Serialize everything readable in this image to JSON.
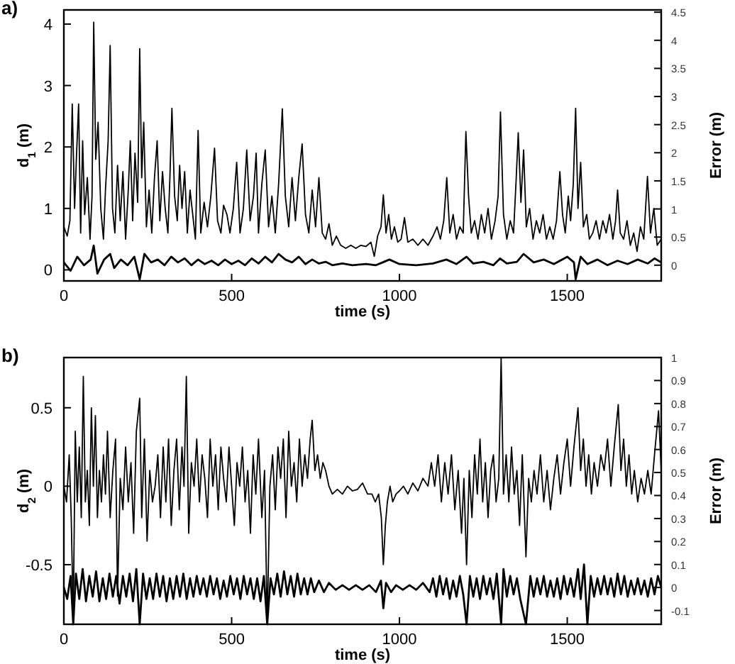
{
  "chart_data": [
    {
      "type": "line",
      "title": "a)",
      "xlabel": "time (s)",
      "ylabel": "d$_{1}$ (m)",
      "y2label": "Error (m)",
      "xlim": [
        0,
        1780
      ],
      "xticks": [
        0,
        500,
        1000,
        1500
      ],
      "ylim": [
        -0.18,
        4.23
      ],
      "yticks": [
        0,
        1,
        2,
        3,
        4
      ],
      "y2lim": [
        -0.28,
        4.54
      ],
      "y2ticks": [
        0,
        0.5,
        1,
        1.5,
        2,
        2.5,
        3,
        3.5,
        4,
        4.5
      ],
      "series": [
        {
          "color": "#000000",
          "x": [
            0,
            10,
            18,
            25,
            32,
            38,
            44,
            50,
            56,
            62,
            70,
            78,
            84,
            89,
            95,
            102,
            110,
            118,
            124,
            132,
            138,
            145,
            152,
            160,
            168,
            176,
            184,
            192,
            198,
            205,
            212,
            220,
            226,
            232,
            238,
            246,
            254,
            262,
            270,
            278,
            286,
            294,
            302,
            310,
            316,
            322,
            330,
            338,
            345,
            352,
            360,
            368,
            376,
            384,
            392,
            400,
            408,
            418,
            428,
            438,
            449,
            458,
            468,
            476,
            486,
            495,
            505,
            515,
            525,
            535,
            545,
            555,
            565,
            573,
            580,
            590,
            600,
            610,
            620,
            630,
            640,
            651,
            660,
            670,
            680,
            690,
            700,
            710,
            720,
            730,
            740,
            750,
            760,
            770,
            780,
            790,
            800,
            812,
            825,
            840,
            855,
            870,
            885,
            900,
            915,
            925,
            935,
            945,
            952,
            960,
            968,
            976,
            985,
            995,
            1005,
            1015,
            1025,
            1040,
            1055,
            1070,
            1085,
            1100,
            1112,
            1122,
            1132,
            1141,
            1150,
            1160,
            1170,
            1180,
            1190,
            1198,
            1206,
            1214,
            1224,
            1234,
            1244,
            1254,
            1264,
            1274,
            1285,
            1294,
            1301,
            1310,
            1320,
            1330,
            1340,
            1348,
            1354,
            1362,
            1370,
            1378,
            1388,
            1398,
            1408,
            1418,
            1428,
            1438,
            1448,
            1458,
            1468,
            1478,
            1486,
            1494,
            1503,
            1510,
            1518,
            1525,
            1532,
            1540,
            1548,
            1558,
            1566,
            1576,
            1586,
            1596,
            1606,
            1616,
            1626,
            1636,
            1644,
            1650,
            1658,
            1668,
            1678,
            1688,
            1698,
            1708,
            1718,
            1728,
            1739,
            1748,
            1758,
            1768,
            1780
          ],
          "values": [
            0.7,
            0.55,
            0.8,
            2.7,
            1.0,
            1.9,
            2.7,
            0.6,
            2.1,
            0.9,
            1.5,
            0.5,
            1.2,
            4.03,
            1.8,
            2.4,
            1.0,
            0.5,
            1.3,
            2.1,
            3.65,
            1.0,
            0.6,
            1.7,
            0.8,
            1.6,
            0.5,
            1.3,
            2.1,
            0.8,
            1.9,
            1.1,
            3.6,
            1.5,
            2.4,
            0.7,
            1.3,
            0.6,
            1.5,
            2.1,
            0.8,
            1.6,
            1.0,
            0.6,
            1.5,
            2.63,
            1.2,
            0.8,
            1.7,
            1.0,
            1.6,
            0.6,
            1.3,
            0.9,
            0.5,
            2.27,
            0.6,
            1.1,
            0.7,
            1.2,
            1.98,
            0.8,
            0.6,
            1.05,
            0.9,
            0.6,
            1.0,
            1.75,
            0.6,
            1.0,
            1.95,
            0.8,
            1.2,
            1.9,
            0.6,
            1.4,
            1.95,
            0.7,
            1.2,
            0.6,
            1.4,
            2.62,
            1.2,
            0.7,
            1.5,
            0.8,
            1.5,
            2.05,
            0.9,
            0.6,
            1.3,
            0.7,
            1.5,
            0.6,
            0.5,
            0.75,
            0.4,
            0.55,
            0.4,
            0.35,
            0.4,
            0.35,
            0.4,
            0.38,
            0.45,
            0.22,
            0.55,
            0.7,
            1.22,
            0.6,
            0.9,
            0.5,
            0.7,
            0.45,
            0.5,
            0.85,
            0.45,
            0.5,
            0.4,
            0.5,
            0.4,
            0.55,
            0.7,
            0.5,
            0.8,
            1.5,
            0.6,
            0.9,
            0.5,
            0.7,
            0.6,
            2.25,
            1.2,
            0.6,
            0.8,
            0.5,
            0.9,
            0.6,
            1.0,
            0.5,
            0.8,
            1.2,
            2.57,
            0.9,
            0.5,
            0.8,
            0.6,
            1.5,
            2.23,
            1.1,
            1.95,
            0.7,
            1.0,
            0.5,
            0.8,
            0.6,
            0.9,
            0.5,
            0.7,
            0.5,
            0.8,
            1.6,
            0.9,
            0.6,
            1.2,
            0.8,
            1.4,
            2.63,
            1.0,
            1.75,
            0.7,
            0.9,
            0.5,
            0.6,
            0.8,
            0.5,
            0.8,
            0.6,
            0.9,
            0.5,
            0.8,
            1.3,
            0.6,
            0.5,
            0.8,
            0.4,
            0.6,
            0.3,
            0.7,
            0.5,
            1.52,
            0.6,
            1.0,
            0.4,
            0.5
          ]
        },
        {
          "color": "#000000",
          "axis": "y2",
          "x": [
            0,
            20,
            40,
            60,
            80,
            89,
            100,
            120,
            138,
            150,
            170,
            190,
            210,
            226,
            240,
            260,
            280,
            300,
            320,
            340,
            360,
            380,
            400,
            420,
            440,
            460,
            480,
            500,
            520,
            540,
            560,
            580,
            600,
            620,
            640,
            660,
            680,
            700,
            720,
            740,
            760,
            780,
            800,
            830,
            860,
            900,
            930,
            950,
            970,
            1000,
            1050,
            1100,
            1140,
            1170,
            1200,
            1220,
            1250,
            1280,
            1300,
            1320,
            1350,
            1370,
            1400,
            1430,
            1460,
            1500,
            1520,
            1525,
            1540,
            1560,
            1590,
            1620,
            1650,
            1680,
            1710,
            1740,
            1760,
            1780
          ],
          "values": [
            0.05,
            -0.1,
            0.15,
            0.0,
            0.1,
            0.35,
            -0.15,
            0.1,
            0.2,
            -0.05,
            0.1,
            0.0,
            0.15,
            -0.25,
            0.2,
            0.05,
            0.1,
            0.0,
            0.15,
            0.05,
            0.12,
            0.0,
            0.1,
            0.02,
            0.08,
            0.0,
            0.1,
            0.02,
            0.08,
            0.0,
            0.12,
            0.03,
            0.15,
            0.05,
            0.2,
            0.1,
            0.05,
            0.15,
            0.02,
            0.1,
            0.03,
            0.06,
            0.0,
            0.03,
            0.0,
            0.02,
            0.0,
            0.05,
            0.1,
            0.02,
            0.0,
            0.03,
            0.1,
            0.02,
            0.15,
            0.03,
            0.06,
            0.0,
            0.12,
            0.03,
            0.06,
            0.2,
            0.05,
            0.1,
            0.02,
            0.15,
            0.05,
            -0.25,
            0.15,
            0.02,
            0.1,
            0.0,
            0.08,
            0.02,
            0.1,
            0.03,
            0.12,
            0.05
          ]
        }
      ]
    },
    {
      "type": "line",
      "title": "b)",
      "xlabel": "time (s)",
      "ylabel": "d$_{2}$ (m)",
      "y2label": "Error (m)",
      "xlim": [
        0,
        1780
      ],
      "xticks": [
        0,
        500,
        1000,
        1500
      ],
      "ylim": [
        -0.88,
        0.82
      ],
      "yticks": [
        -0.5,
        0,
        0.5
      ],
      "y2lim": [
        -0.16,
        1
      ],
      "y2ticks": [
        -0.1,
        0,
        0.1,
        0.2,
        0.3,
        0.4,
        0.5,
        0.6,
        0.7,
        0.8,
        0.9,
        1
      ],
      "series": [
        {
          "color": "#000000",
          "x": [
            0,
            8,
            16,
            22,
            28,
            34,
            40,
            46,
            52,
            58,
            64,
            70,
            76,
            82,
            88,
            94,
            100,
            106,
            112,
            118,
            124,
            130,
            138,
            146,
            154,
            160,
            168,
            176,
            184,
            192,
            200,
            208,
            216,
            226,
            232,
            240,
            248,
            256,
            264,
            272,
            280,
            288,
            296,
            304,
            312,
            320,
            328,
            336,
            344,
            352,
            358,
            365,
            372,
            380,
            388,
            396,
            404,
            412,
            420,
            428,
            436,
            444,
            452,
            460,
            468,
            476,
            484,
            492,
            500,
            508,
            516,
            524,
            532,
            540,
            548,
            556,
            564,
            572,
            580,
            590,
            598,
            606,
            614,
            622,
            630,
            638,
            646,
            654,
            662,
            670,
            678,
            686,
            694,
            702,
            710,
            718,
            726,
            734,
            740,
            748,
            756,
            764,
            772,
            780,
            790,
            800,
            815,
            830,
            845,
            860,
            875,
            890,
            905,
            918,
            928,
            938,
            946,
            952,
            958,
            964,
            972,
            980,
            990,
            1000,
            1012,
            1025,
            1040,
            1055,
            1070,
            1085,
            1095,
            1105,
            1115,
            1125,
            1135,
            1145,
            1155,
            1165,
            1175,
            1185,
            1192,
            1200,
            1208,
            1216,
            1224,
            1232,
            1240,
            1248,
            1256,
            1264,
            1272,
            1280,
            1288,
            1296,
            1303,
            1310,
            1318,
            1326,
            1334,
            1342,
            1350,
            1358,
            1366,
            1377,
            1385,
            1393,
            1401,
            1410,
            1420,
            1430,
            1440,
            1450,
            1460,
            1470,
            1480,
            1490,
            1500,
            1510,
            1520,
            1532,
            1540,
            1548,
            1556,
            1564,
            1572,
            1580,
            1590,
            1600,
            1610,
            1620,
            1630,
            1640,
            1652,
            1660,
            1668,
            1676,
            1684,
            1692,
            1700,
            1710,
            1720,
            1730,
            1740,
            1750,
            1760,
            1772,
            1780
          ],
          "values": [
            0.0,
            -0.1,
            0.2,
            -0.2,
            -0.85,
            0.35,
            -0.1,
            0.25,
            -0.2,
            0.7,
            -0.1,
            0.1,
            -0.25,
            0.5,
            0.0,
            0.45,
            -0.2,
            0.1,
            -0.1,
            0.2,
            -0.05,
            0.35,
            -0.2,
            0.1,
            0.3,
            -0.7,
            0.05,
            -0.15,
            0.25,
            -0.1,
            0.15,
            -0.3,
            0.35,
            0.56,
            -0.2,
            0.3,
            -0.35,
            0.1,
            -0.1,
            0.0,
            0.2,
            -0.2,
            0.25,
            -0.1,
            0.3,
            -0.25,
            0.1,
            0.3,
            -0.15,
            0.25,
            0.0,
            0.7,
            -0.3,
            0.15,
            0.0,
            0.3,
            -0.1,
            0.2,
            0.05,
            -0.2,
            0.3,
            0.0,
            0.2,
            -0.15,
            0.25,
            0.05,
            -0.1,
            0.25,
            0.0,
            -0.25,
            0.15,
            0.0,
            0.25,
            -0.1,
            0.1,
            -0.3,
            0.2,
            -0.05,
            0.3,
            -0.2,
            0.1,
            -0.88,
            0.0,
            0.2,
            -0.15,
            0.25,
            0.05,
            0.3,
            -0.2,
            0.35,
            0.0,
            0.15,
            -0.1,
            0.3,
            0.0,
            0.2,
            0.05,
            0.3,
            0.42,
            0.1,
            0.2,
            0.05,
            0.15,
            0.1,
            0.0,
            -0.05,
            -0.02,
            -0.05,
            0.0,
            -0.03,
            -0.02,
            0.02,
            -0.05,
            -0.05,
            -0.1,
            -0.05,
            -0.2,
            -0.5,
            -0.25,
            -0.1,
            0.0,
            -0.1,
            -0.05,
            -0.03,
            0.0,
            -0.05,
            0.02,
            -0.03,
            0.05,
            0.0,
            0.15,
            0.0,
            0.2,
            -0.1,
            0.15,
            -0.05,
            0.2,
            -0.15,
            0.1,
            -0.3,
            0.05,
            -0.5,
            0.1,
            -0.2,
            0.2,
            -0.05,
            0.3,
            -0.1,
            0.15,
            -0.2,
            0.1,
            0.2,
            -0.1,
            0.05,
            0.82,
            -0.05,
            0.2,
            -0.1,
            0.25,
            -0.05,
            0.1,
            -0.25,
            0.2,
            -0.45,
            0.05,
            -0.1,
            0.1,
            -0.05,
            0.2,
            -0.1,
            0.1,
            -0.15,
            0.05,
            0.2,
            -0.05,
            0.15,
            0.3,
            0.0,
            0.25,
            0.5,
            0.1,
            0.3,
            0.0,
            0.2,
            -0.05,
            0.15,
            0.0,
            0.2,
            0.1,
            0.3,
            0.0,
            0.25,
            0.52,
            0.1,
            0.3,
            0.0,
            0.2,
            -0.05,
            0.1,
            -0.1,
            0.05,
            -0.05,
            0.1,
            -0.05,
            0.2,
            0.48,
            0.1
          ]
        },
        {
          "color": "#000000",
          "axis": "y2",
          "x": [
            0,
            10,
            20,
            28,
            36,
            46,
            56,
            66,
            76,
            86,
            96,
            106,
            116,
            126,
            136,
            146,
            156,
            166,
            176,
            186,
            196,
            206,
            216,
            226,
            236,
            246,
            256,
            266,
            276,
            286,
            296,
            306,
            316,
            326,
            336,
            346,
            356,
            366,
            376,
            386,
            396,
            406,
            416,
            426,
            436,
            446,
            456,
            466,
            476,
            486,
            496,
            506,
            516,
            526,
            536,
            546,
            556,
            566,
            576,
            586,
            596,
            606,
            616,
            626,
            636,
            646,
            656,
            666,
            676,
            686,
            696,
            706,
            716,
            726,
            736,
            746,
            760,
            775,
            790,
            810,
            830,
            850,
            870,
            890,
            910,
            930,
            945,
            952,
            960,
            975,
            990,
            1010,
            1030,
            1050,
            1070,
            1090,
            1100,
            1110,
            1120,
            1130,
            1140,
            1150,
            1160,
            1170,
            1180,
            1190,
            1200,
            1210,
            1220,
            1230,
            1240,
            1250,
            1260,
            1270,
            1280,
            1290,
            1303,
            1310,
            1320,
            1330,
            1340,
            1350,
            1360,
            1377,
            1390,
            1400,
            1410,
            1420,
            1430,
            1440,
            1450,
            1460,
            1470,
            1480,
            1490,
            1500,
            1510,
            1520,
            1532,
            1540,
            1550,
            1560,
            1570,
            1580,
            1590,
            1600,
            1610,
            1620,
            1630,
            1640,
            1650,
            1660,
            1670,
            1680,
            1690,
            1700,
            1710,
            1720,
            1730,
            1740,
            1750,
            1760,
            1770,
            1780
          ],
          "values": [
            0.0,
            -0.05,
            0.05,
            -0.16,
            0.06,
            -0.05,
            0.08,
            -0.06,
            0.05,
            -0.04,
            0.07,
            -0.06,
            0.04,
            -0.05,
            0.06,
            -0.04,
            0.05,
            -0.07,
            0.05,
            -0.04,
            0.06,
            -0.06,
            0.08,
            -0.16,
            0.06,
            -0.05,
            0.04,
            -0.05,
            0.06,
            -0.04,
            0.05,
            -0.06,
            0.04,
            -0.05,
            0.05,
            -0.04,
            0.06,
            -0.05,
            0.04,
            -0.04,
            0.05,
            -0.03,
            0.04,
            -0.04,
            0.05,
            -0.03,
            0.04,
            -0.05,
            0.03,
            -0.04,
            0.05,
            -0.03,
            0.04,
            -0.05,
            0.05,
            -0.03,
            0.04,
            -0.05,
            0.04,
            -0.06,
            0.05,
            -0.16,
            0.04,
            -0.03,
            0.06,
            -0.04,
            0.07,
            -0.03,
            0.05,
            -0.04,
            0.06,
            -0.03,
            0.04,
            -0.03,
            0.04,
            -0.02,
            0.03,
            -0.02,
            0.02,
            -0.01,
            0.01,
            -0.01,
            0.01,
            -0.01,
            0.01,
            -0.02,
            0.03,
            -0.09,
            0.02,
            -0.02,
            0.01,
            -0.01,
            0.01,
            -0.01,
            0.02,
            -0.02,
            0.04,
            -0.04,
            0.05,
            -0.03,
            0.04,
            -0.05,
            0.03,
            -0.04,
            0.05,
            -0.03,
            -0.16,
            0.05,
            -0.04,
            0.04,
            -0.05,
            0.05,
            -0.03,
            0.04,
            -0.05,
            0.06,
            -0.16,
            0.08,
            -0.04,
            0.05,
            -0.03,
            0.04,
            -0.05,
            -0.16,
            0.05,
            -0.04,
            0.04,
            -0.03,
            0.05,
            -0.04,
            0.03,
            -0.04,
            0.04,
            -0.05,
            0.05,
            -0.03,
            0.04,
            -0.04,
            0.08,
            -0.05,
            0.1,
            -0.16,
            0.05,
            -0.04,
            0.04,
            -0.03,
            0.05,
            -0.03,
            0.04,
            -0.04,
            0.06,
            -0.03,
            0.05,
            -0.04,
            0.03,
            -0.03,
            0.04,
            -0.03,
            0.03,
            -0.04,
            0.04,
            -0.03,
            0.05,
            0.0
          ]
        }
      ]
    }
  ]
}
